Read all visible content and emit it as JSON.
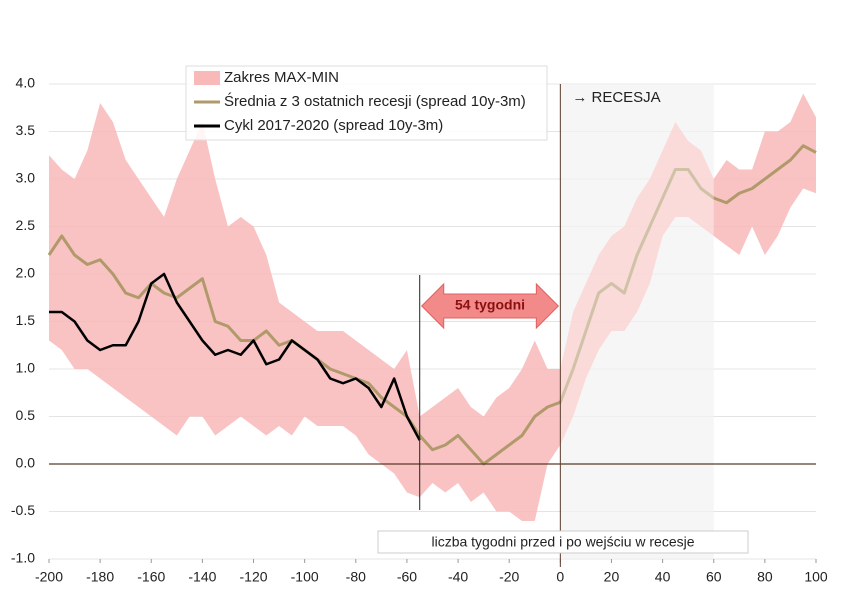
{
  "chart_data": {
    "type": "line",
    "x": [
      -200,
      -195,
      -190,
      -185,
      -180,
      -175,
      -170,
      -165,
      -160,
      -155,
      -150,
      -145,
      -140,
      -135,
      -130,
      -125,
      -120,
      -115,
      -110,
      -105,
      -100,
      -95,
      -90,
      -85,
      -80,
      -75,
      -70,
      -65,
      -60,
      -55,
      -50,
      -45,
      -40,
      -35,
      -30,
      -25,
      -20,
      -15,
      -10,
      -5,
      0,
      5,
      10,
      15,
      20,
      25,
      30,
      35,
      40,
      45,
      50,
      55,
      60,
      65,
      70,
      75,
      80,
      85,
      90,
      95,
      100
    ],
    "series": [
      {
        "name": "Zakres MAX-MIN",
        "type": "area",
        "color": "#f9b9b9",
        "high": [
          3.25,
          3.1,
          3.0,
          3.3,
          3.8,
          3.6,
          3.2,
          3.0,
          2.8,
          2.6,
          3.0,
          3.3,
          3.6,
          3.0,
          2.5,
          2.6,
          2.5,
          2.2,
          1.7,
          1.6,
          1.5,
          1.4,
          1.4,
          1.4,
          1.3,
          1.2,
          1.1,
          1.0,
          1.2,
          0.5,
          0.6,
          0.7,
          0.8,
          0.6,
          0.5,
          0.7,
          0.8,
          1.0,
          1.3,
          1.0,
          1.0,
          1.6,
          1.9,
          2.2,
          2.4,
          2.5,
          2.8,
          3.0,
          3.3,
          3.6,
          3.4,
          3.3,
          3.0,
          3.2,
          3.1,
          3.1,
          3.5,
          3.5,
          3.6,
          3.9,
          3.65
        ],
        "low": [
          1.3,
          1.2,
          1.0,
          1.0,
          0.9,
          0.8,
          0.7,
          0.6,
          0.5,
          0.4,
          0.3,
          0.5,
          0.5,
          0.3,
          0.4,
          0.5,
          0.4,
          0.3,
          0.4,
          0.3,
          0.5,
          0.4,
          0.4,
          0.4,
          0.3,
          0.1,
          0.0,
          -0.1,
          -0.3,
          -0.35,
          -0.2,
          -0.3,
          -0.2,
          -0.4,
          -0.3,
          -0.5,
          -0.5,
          -0.6,
          -0.6,
          0.0,
          0.2,
          0.5,
          0.9,
          1.2,
          1.4,
          1.4,
          1.6,
          1.9,
          2.4,
          2.6,
          2.6,
          2.5,
          2.4,
          2.3,
          2.2,
          2.5,
          2.2,
          2.4,
          2.7,
          2.9,
          2.85
        ]
      },
      {
        "name": "Średnia z 3 ostatnich recesji (spread 10y-3m)",
        "color": "#b09a6b",
        "values": [
          2.2,
          2.4,
          2.2,
          2.1,
          2.15,
          2.0,
          1.8,
          1.75,
          1.9,
          1.8,
          1.75,
          1.85,
          1.95,
          1.5,
          1.45,
          1.3,
          1.3,
          1.4,
          1.25,
          1.3,
          1.2,
          1.1,
          1.0,
          0.95,
          0.9,
          0.85,
          0.7,
          0.6,
          0.5,
          0.3,
          0.15,
          0.2,
          0.3,
          0.15,
          0.0,
          0.1,
          0.2,
          0.3,
          0.5,
          0.6,
          0.65,
          1.0,
          1.4,
          1.8,
          1.9,
          1.8,
          2.2,
          2.5,
          2.8,
          3.1,
          3.1,
          2.9,
          2.8,
          2.75,
          2.85,
          2.9,
          3.0,
          3.1,
          3.2,
          3.35,
          3.28
        ]
      },
      {
        "name": "Cykl 2017-2020 (spread 10y-3m)",
        "color": "#000000",
        "values": [
          1.6,
          1.6,
          1.5,
          1.3,
          1.2,
          1.25,
          1.25,
          1.5,
          1.9,
          2.0,
          1.7,
          1.5,
          1.3,
          1.15,
          1.2,
          1.15,
          1.3,
          1.05,
          1.1,
          1.3,
          1.2,
          1.1,
          0.9,
          0.85,
          0.9,
          0.8,
          0.6,
          0.9,
          0.5,
          0.25,
          null,
          null,
          null,
          null,
          null,
          null,
          null,
          null,
          null,
          null,
          null,
          null,
          null,
          null,
          null,
          null,
          null,
          null,
          null,
          null,
          null,
          null,
          null,
          null,
          null,
          null,
          null,
          null,
          null,
          null,
          null
        ]
      }
    ],
    "xlim": [
      -200,
      100
    ],
    "xticks": [
      -200,
      -180,
      -160,
      -140,
      -120,
      -100,
      -80,
      -60,
      -40,
      -20,
      0,
      20,
      40,
      60,
      80,
      100
    ],
    "ylim": [
      -1,
      4
    ],
    "yticks": [
      {
        "value": -1,
        "label": "-1.0"
      },
      -0.5,
      {
        "value": 0,
        "label": "0.0"
      },
      0.5,
      {
        "value": 1,
        "label": "1.0"
      },
      1.5,
      {
        "value": 2,
        "label": "2.0"
      },
      2.5,
      {
        "value": 3,
        "label": "3.0"
      },
      3.5,
      {
        "value": 4,
        "label": "4.0"
      }
    ],
    "grid": true,
    "recession_span": [
      0,
      60
    ],
    "vlines": [
      -55,
      0
    ],
    "annotations": {
      "arrow": "54 tygodni",
      "recession": "→ RECESJA",
      "xlabel": "liczba tygodni przed i po wejściu w recesje"
    }
  }
}
